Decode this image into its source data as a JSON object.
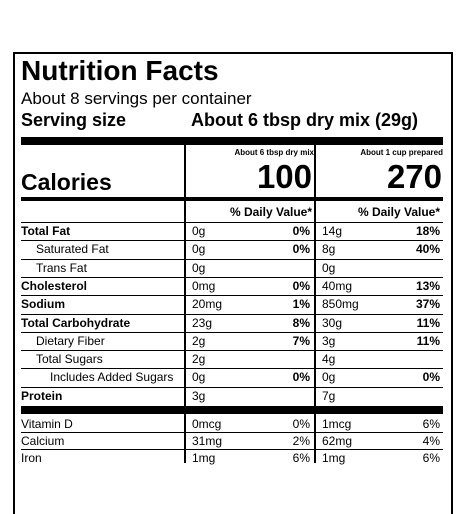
{
  "title": "Nutrition Facts",
  "servings_per_container": "About 8 servings per container",
  "serving_size": {
    "label": "Serving size",
    "value": "About 6 tbsp dry mix (29g)"
  },
  "columns": [
    {
      "header": "About 6 tbsp dry mix",
      "calories": "100"
    },
    {
      "header": "About 1 cup prepared",
      "calories": "270"
    }
  ],
  "calories_label": "Calories",
  "dv_label": "% Daily Value*",
  "rows": [
    {
      "name": "Total Fat",
      "bold": true,
      "indent": 0,
      "c1_amt": "0g",
      "c1_dv": "0%",
      "c2_amt": "14g",
      "c2_dv": "18%"
    },
    {
      "name": "Saturated Fat",
      "bold": false,
      "indent": 1,
      "c1_amt": "0g",
      "c1_dv": "0%",
      "c2_amt": "8g",
      "c2_dv": "40%"
    },
    {
      "name": "Trans Fat",
      "bold": false,
      "indent": 1,
      "c1_amt": "0g",
      "c1_dv": "",
      "c2_amt": "0g",
      "c2_dv": ""
    },
    {
      "name": "Cholesterol",
      "bold": true,
      "indent": 0,
      "c1_amt": "0mg",
      "c1_dv": "0%",
      "c2_amt": "40mg",
      "c2_dv": "13%"
    },
    {
      "name": "Sodium",
      "bold": true,
      "indent": 0,
      "c1_amt": "20mg",
      "c1_dv": "1%",
      "c2_amt": "850mg",
      "c2_dv": "37%"
    },
    {
      "name": "Total Carbohydrate",
      "bold": true,
      "indent": 0,
      "c1_amt": "23g",
      "c1_dv": "8%",
      "c2_amt": "30g",
      "c2_dv": "11%"
    },
    {
      "name": "Dietary Fiber",
      "bold": false,
      "indent": 1,
      "c1_amt": "2g",
      "c1_dv": "7%",
      "c2_amt": "3g",
      "c2_dv": "11%"
    },
    {
      "name": "Total Sugars",
      "bold": false,
      "indent": 1,
      "c1_amt": "2g",
      "c1_dv": "",
      "c2_amt": "4g",
      "c2_dv": ""
    },
    {
      "name": "Includes Added Sugars",
      "bold": false,
      "indent": 2,
      "c1_amt": "0g",
      "c1_dv": "0%",
      "c2_amt": "0g",
      "c2_dv": "0%"
    },
    {
      "name": "Protein",
      "bold": true,
      "indent": 0,
      "c1_amt": "3g",
      "c1_dv": "",
      "c2_amt": "7g",
      "c2_dv": ""
    }
  ],
  "vitamins": [
    {
      "name": "Vitamin D",
      "c1_amt": "0mcg",
      "c1_dv": "0%",
      "c2_amt": "1mcg",
      "c2_dv": "6%"
    },
    {
      "name": "Calcium",
      "c1_amt": "31mg",
      "c1_dv": "2%",
      "c2_amt": "62mg",
      "c2_dv": "4%"
    },
    {
      "name": "Iron",
      "c1_amt": "1mg",
      "c1_dv": "6%",
      "c2_amt": "1mg",
      "c2_dv": "6%"
    }
  ]
}
